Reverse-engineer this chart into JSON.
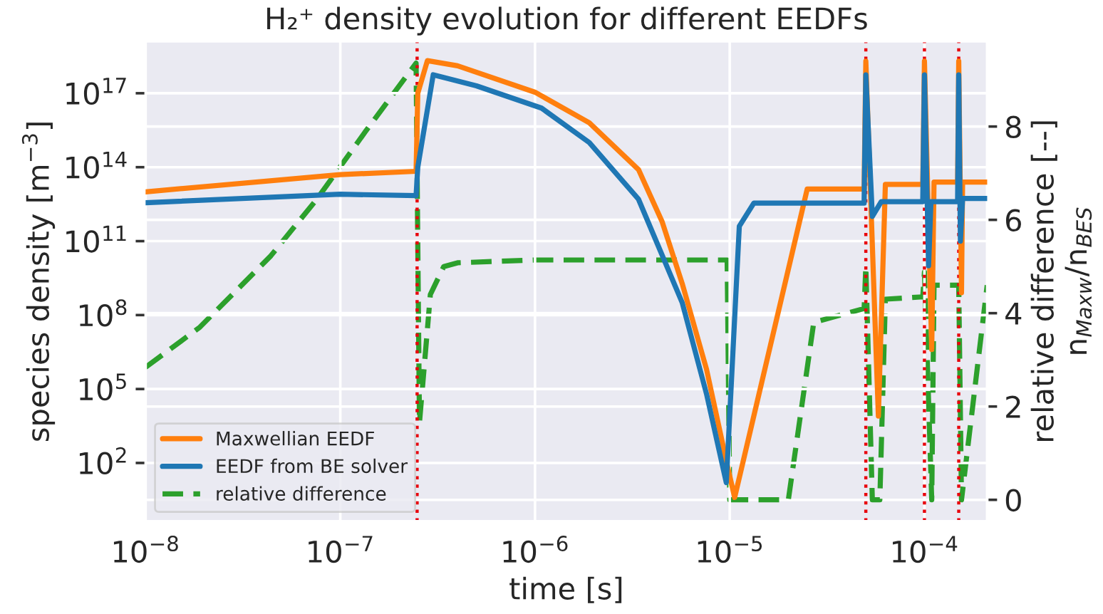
{
  "chart_data": {
    "type": "line",
    "title": "H₂⁺ density evolution for different EEDFs",
    "xlabel": "time [s]",
    "ylabel": "species density [m$^{−3}$]",
    "y2label": "relative difference [--]\nn$_{Maxw}$/n$_{BES}$",
    "log": "xy",
    "grid": true,
    "legend": "bottom left",
    "xlim": [
      1e-08,
      0.00021
    ],
    "xticks": [
      {
        "value": 1e-08,
        "label": "10$^{−8}$"
      },
      {
        "value": 1e-07,
        "label": "10$^{−7}$"
      },
      {
        "value": 1e-06,
        "label": "10$^{−6}$"
      },
      {
        "value": 1e-05,
        "label": "10$^{−5}$"
      },
      {
        "value": 0.0001,
        "label": "10$^{−4}$"
      }
    ],
    "ylim": [
      0.43,
      1.3e+19
    ],
    "yticks": [
      {
        "value": 100.0,
        "label": "10$^{2}$"
      },
      {
        "value": 100000.0,
        "label": "10$^{5}$"
      },
      {
        "value": 100000000.0,
        "label": "10$^{8}$"
      },
      {
        "value": 100000000000.0,
        "label": "10$^{11}$"
      },
      {
        "value": 100000000000000.0,
        "label": "10$^{14}$"
      },
      {
        "value": 1e+17,
        "label": "10$^{17}$"
      }
    ],
    "y2lim": [
      -0.46,
      9.83
    ],
    "y2ticks": [
      0,
      2,
      4,
      6,
      8
    ],
    "ref_lines": [
      {
        "axis": "x",
        "value": 2.48e-07,
        "color": "#e8000b",
        "line_style": "dotted"
      },
      {
        "axis": "x",
        "value": 5e-05,
        "color": "#e8000b",
        "line_style": "dotted"
      },
      {
        "axis": "x",
        "value": 0.0001,
        "color": "#e8000b",
        "line_style": "dotted"
      },
      {
        "axis": "x",
        "value": 0.00015,
        "color": "#e8000b",
        "line_style": "dotted"
      }
    ],
    "series": [
      {
        "name": "Maxwellian EEDF",
        "color": "#ff7f0e",
        "line_style": "solid",
        "x": [
          1e-08,
          1e-07,
          2.45e-07,
          2.5e-07,
          2.8e-07,
          4e-07,
          1e-06,
          1.9e-06,
          3.4e-06,
          4.5e-06,
          5.7e-06,
          7.6e-06,
          9.8e-06,
          1.06e-05,
          2.5e-05,
          4.9e-05,
          5e-05,
          5.8e-05,
          6.3e-05,
          9.8e-05,
          0.0001,
          0.000109,
          0.000112,
          0.000148,
          0.00015,
          0.000155,
          0.000157,
          0.00021
        ],
        "values": [
          10000000000000.0,
          50000000000000.0,
          68000000000000.0,
          1e+17,
          2.1e+18,
          1.3e+18,
          1.1e+17,
          6300000000000000.0,
          80000000000000.0,
          600000000000.0,
          1900000000.0,
          630000.0,
          59.0,
          4.0,
          13000000000000.0,
          13000000000000.0,
          2e+18,
          8000.0,
          20000000000000.0,
          20000000000000.0,
          2e+18,
          4000000.0,
          25000000000000.0,
          25000000000000.0,
          2e+18,
          800000000.0,
          25000000000000.0,
          25000000000000.0
        ]
      },
      {
        "name": "EEDF from BE solver",
        "color": "#1f77b4",
        "line_style": "solid",
        "x": [
          1e-08,
          1e-07,
          2.45e-07,
          2.5e-07,
          3e-07,
          5e-07,
          1.08e-06,
          1.9e-06,
          3.4e-06,
          5.7e-06,
          7.6e-06,
          9.6e-06,
          1.12e-05,
          1.33e-05,
          4.9e-05,
          5e-05,
          5.4e-05,
          6e-05,
          9.8e-05,
          0.0001,
          0.000105,
          0.000108,
          0.000148,
          0.00015,
          0.000153,
          0.000157,
          0.00021
        ],
        "values": [
          3600000000000.0,
          8000000000000.0,
          7000000000000.0,
          100000000000000.0,
          5.6e+17,
          2e+17,
          2.5e+16,
          1000000000000000.0,
          5000000000000.0,
          320000000.0,
          63000.0,
          16.0,
          400000000000.0,
          3500000000000.0,
          3500000000000.0,
          5.6e+17,
          1000000000000.0,
          4000000000000.0,
          4000000000000.0,
          5.6e+17,
          10000000000.0,
          4000000000000.0,
          4000000000000.0,
          5.6e+17,
          100000000000.0,
          5400000000000.0,
          5400000000000.0
        ]
      },
      {
        "name": "relative difference",
        "color": "#2ca02c",
        "line_style": "dashed",
        "axis": "y2",
        "x": [
          1e-08,
          1.9e-08,
          4.4e-08,
          7.6e-08,
          1.35e-07,
          2.45e-07,
          2.55e-07,
          2.9e-07,
          3.4e-07,
          4e-07,
          1e-06,
          9.7e-06,
          1e-05,
          2e-05,
          2.7e-05,
          4.9e-05,
          5e-05,
          5.4e-05,
          5.9e-05,
          6.3e-05,
          9.8e-05,
          0.0001,
          0.000109,
          0.000112,
          0.000148,
          0.00015,
          0.000155,
          0.00021
        ],
        "values": [
          2.84,
          3.7,
          5.23,
          6.45,
          7.9,
          9.36,
          1.65,
          4.4,
          5.0,
          5.08,
          5.14,
          5.14,
          0,
          0,
          3.8,
          4.1,
          5.0,
          0,
          0,
          4.3,
          4.35,
          4.88,
          0,
          4.6,
          4.6,
          4.6,
          0,
          4.6
        ]
      }
    ]
  }
}
